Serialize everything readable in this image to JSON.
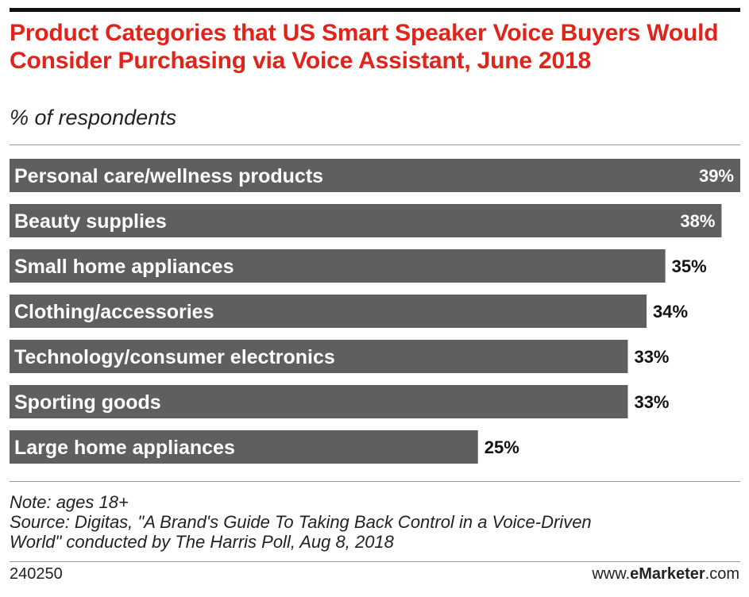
{
  "header": {
    "title": "Product Categories that US Smart Speaker Voice Buyers Would Consider Purchasing via Voice Assistant, June 2018",
    "subtitle": "% of respondents"
  },
  "chart_data": {
    "type": "bar",
    "orientation": "horizontal",
    "title": "Product Categories that US Smart Speaker Voice Buyers Would Consider Purchasing via Voice Assistant, June 2018",
    "subtitle": "% of respondents",
    "categories": [
      "Personal care/wellness products",
      "Beauty supplies",
      "Small home appliances",
      "Clothing/accessories",
      "Technology/consumer electronics",
      "Sporting goods",
      "Large home appliances"
    ],
    "values": [
      39,
      38,
      35,
      34,
      33,
      33,
      25
    ],
    "value_labels": [
      "39%",
      "38%",
      "35%",
      "34%",
      "33%",
      "33%",
      "25%"
    ],
    "xlim": [
      0,
      39
    ],
    "grid": false,
    "bar_color": "#5f5f5f",
    "label_color": "#ffffff"
  },
  "footer": {
    "note": "Note: ages 18+",
    "source_line1": "Source: Digitas, \"A Brand's Guide To Taking Back Control in a Voice-Driven",
    "source_line2": "World\" conducted by The Harris Poll, Aug 8, 2018",
    "chart_id": "240250",
    "brand_prefix": "www.",
    "brand_bold": "eMarketer",
    "brand_suffix": ".com"
  },
  "colors": {
    "title": "#e2231a",
    "bar": "#5f5f5f",
    "text": "#222222"
  }
}
